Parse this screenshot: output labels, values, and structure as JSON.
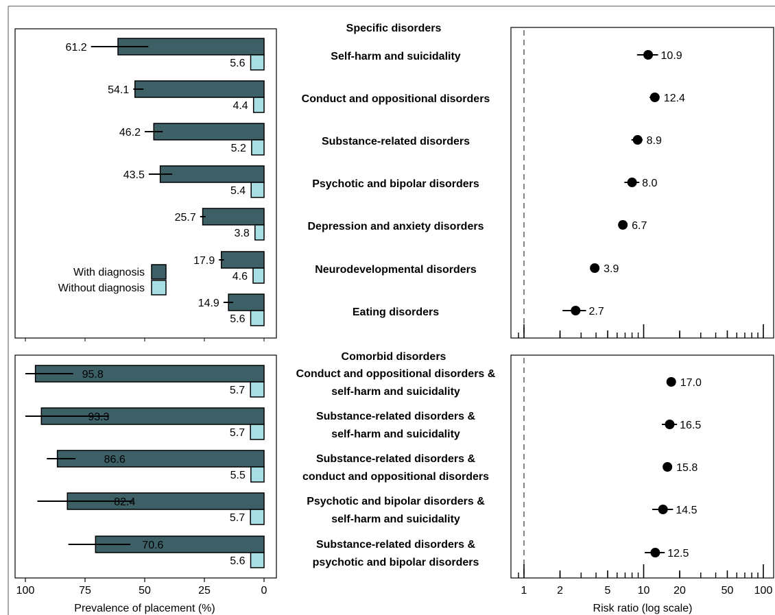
{
  "chart_data": [
    {
      "panel": "specific",
      "type": "bar",
      "section_title": "Specific disorders",
      "categories": [
        "Self-harm and suicidality",
        "Conduct and oppositional disorders",
        "Substance-related disorders",
        "Psychotic and bipolar disorders",
        "Depression and anxiety disorders",
        "Neurodevelopmental disorders",
        "Eating disorders"
      ],
      "series": [
        {
          "name": "With diagnosis",
          "color": "#3d5f66",
          "values": [
            61.2,
            54.1,
            46.2,
            43.5,
            25.7,
            17.9,
            14.9
          ],
          "ci_low": [
            48.5,
            50.5,
            42.5,
            38.5,
            24.5,
            16.8,
            12.9
          ],
          "ci_high": [
            72.5,
            54.8,
            50.0,
            48.3,
            26.8,
            18.9,
            17.0
          ]
        },
        {
          "name": "Without diagnosis",
          "color": "#a8dde3",
          "values": [
            5.6,
            4.4,
            5.2,
            5.4,
            3.8,
            4.6,
            5.6
          ]
        }
      ],
      "value_labels_with": [
        "61.2",
        "54.1",
        "46.2",
        "43.5",
        "25.7",
        "17.9",
        "14.9"
      ],
      "value_labels_without": [
        "5.6",
        "4.4",
        "5.2",
        "5.4",
        "3.8",
        "4.6",
        "5.6"
      ],
      "xlim": [
        100,
        0
      ],
      "legend": {
        "placement": "bottom-left",
        "items": [
          "With diagnosis",
          "Without diagnosis"
        ]
      },
      "risk_ratio": {
        "values": [
          10.9,
          12.4,
          8.9,
          8.0,
          6.7,
          3.9,
          2.7
        ],
        "labels": [
          "10.9",
          "12.4",
          "8.9",
          "8.0",
          "6.7",
          "3.9",
          "2.7"
        ],
        "ci_low": [
          8.8,
          11.2,
          7.9,
          6.9,
          6.2,
          3.6,
          2.1
        ],
        "ci_high": [
          13.2,
          13.5,
          9.8,
          9.2,
          7.2,
          4.2,
          3.3
        ],
        "reference_line": 1,
        "scale": "log"
      }
    },
    {
      "panel": "comorbid",
      "type": "bar",
      "section_title": "Comorbid disorders",
      "categories": [
        [
          "Conduct and oppositional disorders &",
          "self-harm and suicidality"
        ],
        [
          "Substance-related disorders &",
          "self-harm and suicidality"
        ],
        [
          "Substance-related disorders &",
          "conduct and oppositional disorders"
        ],
        [
          "Psychotic and bipolar disorders &",
          "self-harm and suicidality"
        ],
        [
          "Substance-related disorders &",
          "psychotic and bipolar disorders"
        ]
      ],
      "series": [
        {
          "name": "With diagnosis",
          "color": "#3d5f66",
          "values": [
            95.8,
            93.3,
            86.6,
            82.4,
            70.6
          ],
          "ci_low": [
            80.0,
            65.0,
            79.0,
            55.0,
            56.0
          ],
          "ci_high": [
            100.0,
            100.0,
            91.0,
            95.0,
            82.0
          ]
        },
        {
          "name": "Without diagnosis",
          "color": "#a8dde3",
          "values": [
            5.7,
            5.7,
            5.5,
            5.7,
            5.6
          ]
        }
      ],
      "value_labels_with": [
        "95.8",
        "93.3",
        "86.6",
        "82.4",
        "70.6"
      ],
      "value_labels_without": [
        "5.7",
        "5.7",
        "5.5",
        "5.7",
        "5.6"
      ],
      "xlim": [
        100,
        0
      ],
      "xlabel": "Prevalence of placement (%)",
      "xticks": [
        100,
        75,
        50,
        25,
        0
      ],
      "xtick_labels": [
        "100",
        "75",
        "50",
        "25",
        "0"
      ],
      "risk_ratio": {
        "values": [
          17.0,
          16.5,
          15.8,
          14.5,
          12.5
        ],
        "labels": [
          "17.0",
          "16.5",
          "15.8",
          "14.5",
          "12.5"
        ],
        "ci_low": [
          16.0,
          14.2,
          15.0,
          11.8,
          10.2
        ],
        "ci_high": [
          18.0,
          19.0,
          16.6,
          17.6,
          15.0
        ],
        "reference_line": 1,
        "scale": "log",
        "xlabel": "Risk ratio (log scale)",
        "xticks": [
          1,
          2,
          5,
          10,
          20,
          50,
          100
        ],
        "xtick_labels": [
          "1",
          "2",
          "5",
          "10",
          "20",
          "50",
          "100"
        ]
      }
    }
  ]
}
